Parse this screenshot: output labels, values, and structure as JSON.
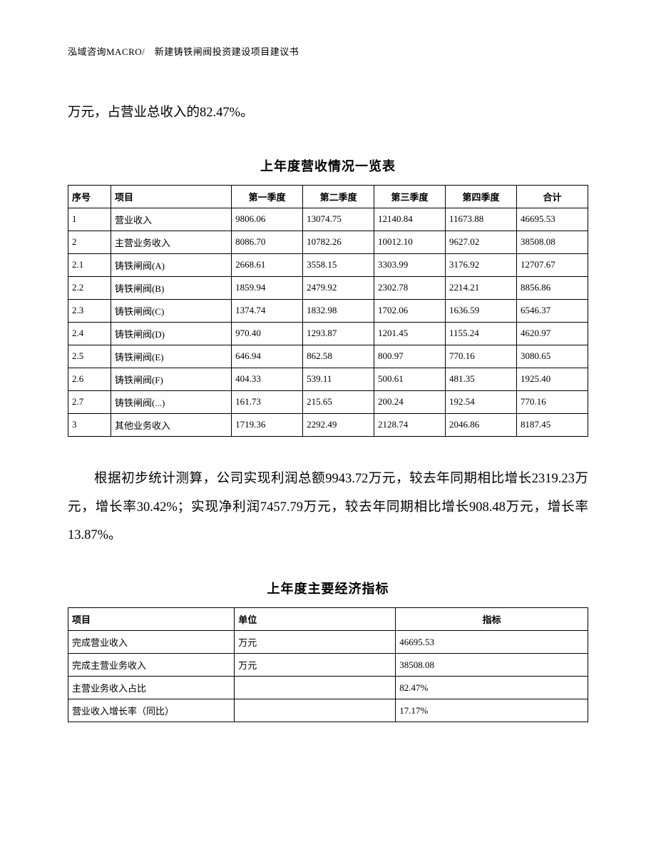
{
  "header": "泓域咨询MACRO/　新建铸铁闸阀投资建设项目建议书",
  "para1": "万元，占营业总收入的82.47%。",
  "table1": {
    "title": "上年度营收情况一览表",
    "columns": [
      "序号",
      "项目",
      "第一季度",
      "第二季度",
      "第三季度",
      "第四季度",
      "合计"
    ],
    "rows": [
      [
        "1",
        "营业收入",
        "9806.06",
        "13074.75",
        "12140.84",
        "11673.88",
        "46695.53"
      ],
      [
        "2",
        "主营业务收入",
        "8086.70",
        "10782.26",
        "10012.10",
        "9627.02",
        "38508.08"
      ],
      [
        "2.1",
        "铸铁闸阀(A)",
        "2668.61",
        "3558.15",
        "3303.99",
        "3176.92",
        "12707.67"
      ],
      [
        "2.2",
        "铸铁闸阀(B)",
        "1859.94",
        "2479.92",
        "2302.78",
        "2214.21",
        "8856.86"
      ],
      [
        "2.3",
        "铸铁闸阀(C)",
        "1374.74",
        "1832.98",
        "1702.06",
        "1636.59",
        "6546.37"
      ],
      [
        "2.4",
        "铸铁闸阀(D)",
        "970.40",
        "1293.87",
        "1201.45",
        "1155.24",
        "4620.97"
      ],
      [
        "2.5",
        "铸铁闸阀(E)",
        "646.94",
        "862.58",
        "800.97",
        "770.16",
        "3080.65"
      ],
      [
        "2.6",
        "铸铁闸阀(F)",
        "404.33",
        "539.11",
        "500.61",
        "481.35",
        "1925.40"
      ],
      [
        "2.7",
        "铸铁闸阀(...)",
        "161.73",
        "215.65",
        "200.24",
        "192.54",
        "770.16"
      ],
      [
        "3",
        "其他业务收入",
        "1719.36",
        "2292.49",
        "2128.74",
        "2046.86",
        "8187.45"
      ]
    ]
  },
  "para2": "根据初步统计测算，公司实现利润总额9943.72万元，较去年同期相比增长2319.23万元，增长率30.42%；实现净利润7457.79万元，较去年同期相比增长908.48万元，增长率13.87%。",
  "table2": {
    "title": "上年度主要经济指标",
    "columns": [
      "项目",
      "单位",
      "指标"
    ],
    "rows": [
      [
        "完成营业收入",
        "万元",
        "46695.53"
      ],
      [
        "完成主营业务收入",
        "万元",
        "38508.08"
      ],
      [
        "主营业务收入占比",
        "",
        "82.47%"
      ],
      [
        "营业收入增长率（同比）",
        "",
        "17.17%"
      ]
    ]
  }
}
